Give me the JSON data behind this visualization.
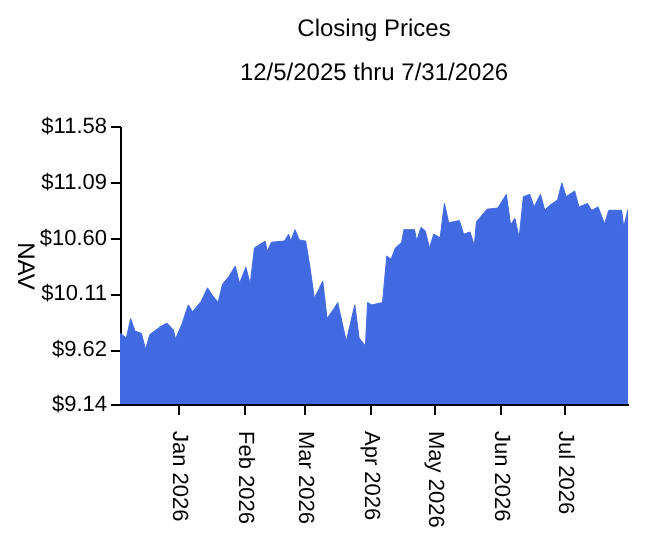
{
  "chart_data": {
    "type": "area",
    "title": "Closing Prices",
    "subtitle": "12/5/2025 thru 7/31/2026",
    "ylabel": "NAV",
    "x": [
      "2025-12-05",
      "2025-12-08",
      "2025-12-10",
      "2025-12-12",
      "2025-12-15",
      "2025-12-17",
      "2025-12-19",
      "2025-12-24",
      "2025-12-27",
      "2025-12-30",
      "2025-12-31",
      "2026-01-03",
      "2026-01-06",
      "2026-01-08",
      "2026-01-12",
      "2026-01-15",
      "2026-01-17",
      "2026-01-20",
      "2026-01-22",
      "2026-01-25",
      "2026-01-28",
      "2026-01-30",
      "2026-02-02",
      "2026-02-04",
      "2026-02-06",
      "2026-02-11",
      "2026-02-12",
      "2026-02-14",
      "2026-02-20",
      "2026-02-22",
      "2026-02-23",
      "2026-02-25",
      "2026-02-27",
      "2026-03-02",
      "2026-03-04",
      "2026-03-06",
      "2026-03-08",
      "2026-03-10",
      "2026-03-12",
      "2026-03-15",
      "2026-03-17",
      "2026-03-19",
      "2026-03-21",
      "2026-03-25",
      "2026-03-27",
      "2026-03-30",
      "2026-03-31",
      "2026-04-02",
      "2026-04-07",
      "2026-04-09",
      "2026-04-11",
      "2026-04-13",
      "2026-04-16",
      "2026-04-17",
      "2026-04-22",
      "2026-04-23",
      "2026-04-25",
      "2026-04-27",
      "2026-04-29",
      "2026-05-01",
      "2026-05-04",
      "2026-05-06",
      "2026-05-08",
      "2026-05-13",
      "2026-05-15",
      "2026-05-18",
      "2026-05-20",
      "2026-05-21",
      "2026-05-26",
      "2026-05-31",
      "2026-06-04",
      "2026-06-06",
      "2026-06-08",
      "2026-06-10",
      "2026-06-12",
      "2026-06-15",
      "2026-06-17",
      "2026-06-20",
      "2026-06-22",
      "2026-06-24",
      "2026-06-28",
      "2026-06-30",
      "2026-07-02",
      "2026-07-06",
      "2026-07-08",
      "2026-07-12",
      "2026-07-14",
      "2026-07-17",
      "2026-07-20",
      "2026-07-22",
      "2026-07-28",
      "2026-07-29",
      "2026-07-31"
    ],
    "series": [
      {
        "color": "#4169e1",
        "values": [
          9.76,
          9.72,
          9.89,
          9.78,
          9.76,
          9.62,
          9.75,
          9.82,
          9.85,
          9.79,
          9.71,
          9.84,
          10.01,
          9.95,
          10.04,
          10.16,
          10.1,
          10.03,
          10.19,
          10.26,
          10.35,
          10.2,
          10.34,
          10.19,
          10.51,
          10.57,
          10.48,
          10.56,
          10.57,
          10.63,
          10.57,
          10.67,
          10.58,
          10.57,
          10.34,
          10.07,
          10.14,
          10.22,
          9.89,
          9.97,
          10.03,
          9.86,
          9.69,
          10.01,
          9.72,
          9.65,
          10.03,
          10.01,
          10.03,
          10.44,
          10.41,
          10.51,
          10.56,
          10.67,
          10.67,
          10.57,
          10.69,
          10.66,
          10.51,
          10.63,
          10.6,
          10.9,
          10.73,
          10.75,
          10.63,
          10.65,
          10.53,
          10.74,
          10.85,
          10.86,
          10.98,
          10.71,
          10.77,
          10.6,
          10.96,
          10.98,
          10.87,
          10.98,
          10.84,
          10.88,
          10.93,
          11.08,
          10.96,
          11.01,
          10.87,
          10.9,
          10.84,
          10.87,
          10.72,
          10.84,
          10.84,
          10.69,
          10.85
        ]
      }
    ],
    "xlim": [
      "2025-12-05",
      "2026-07-31"
    ],
    "xticks": [
      {
        "value": "2026-01-01",
        "label": "Jan  2026"
      },
      {
        "value": "2026-02-01",
        "label": "Feb  2026"
      },
      {
        "value": "2026-03-01",
        "label": "Mar  2026"
      },
      {
        "value": "2026-04-01",
        "label": "Apr  2026"
      },
      {
        "value": "2026-05-01",
        "label": "May  2026"
      },
      {
        "value": "2026-06-01",
        "label": "Jun  2026"
      },
      {
        "value": "2026-07-01",
        "label": "Jul  2026"
      }
    ],
    "ylim": [
      9.14,
      11.58
    ],
    "yticks": [
      {
        "value": 9.14,
        "label": "$9.14"
      },
      {
        "value": 9.62,
        "label": "$9.62"
      },
      {
        "value": 10.11,
        "label": "$10.11"
      },
      {
        "value": 10.6,
        "label": "$10.60"
      },
      {
        "value": 11.09,
        "label": "$11.09"
      },
      {
        "value": 11.58,
        "label": "$11.58"
      }
    ],
    "grid": false
  }
}
